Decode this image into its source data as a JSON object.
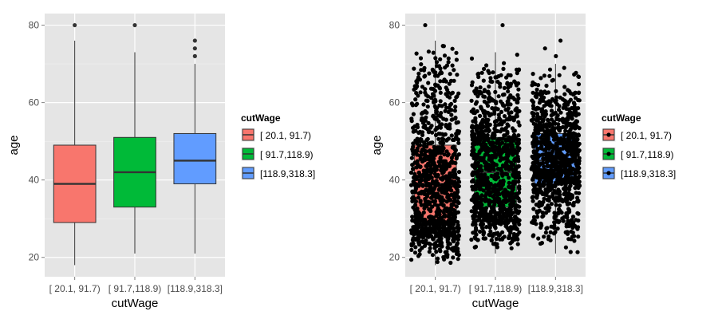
{
  "chart_data": [
    {
      "type": "box",
      "xlabel": "cutWage",
      "ylabel": "age",
      "categories": [
        "[ 20.1, 91.7)",
        "[ 91.7,118.9)",
        "[118.9,318.3]"
      ],
      "ylim": [
        15,
        83
      ],
      "yticks": [
        20,
        40,
        60,
        80
      ],
      "grid": true,
      "legend": {
        "title": "cutWage",
        "position": "right",
        "entries": [
          "[ 20.1, 91.7)",
          "[ 91.7,118.9)",
          "[118.9,318.3]"
        ]
      },
      "boxes": [
        {
          "category": "[ 20.1, 91.7)",
          "whisker_low": 18,
          "q1": 29,
          "median": 39,
          "q3": 49,
          "whisker_high": 76,
          "outliers": [
            80
          ]
        },
        {
          "category": "[ 91.7,118.9)",
          "whisker_low": 21,
          "q1": 33,
          "median": 42,
          "q3": 51,
          "whisker_high": 73,
          "outliers": [
            80
          ]
        },
        {
          "category": "[118.9,318.3]",
          "whisker_low": 21,
          "q1": 39,
          "median": 45,
          "q3": 52,
          "whisker_high": 70,
          "outliers": [
            72,
            74,
            76
          ]
        }
      ]
    },
    {
      "type": "box",
      "overlay": "jittered points",
      "xlabel": "cutWage",
      "ylabel": "age",
      "categories": [
        "[ 20.1, 91.7)",
        "[ 91.7,118.9)",
        "[118.9,318.3]"
      ],
      "ylim": [
        15,
        83
      ],
      "yticks": [
        20,
        40,
        60,
        80
      ],
      "grid": true,
      "legend": {
        "title": "cutWage",
        "position": "right",
        "entries": [
          "[ 20.1, 91.7)",
          "[ 91.7,118.9)",
          "[118.9,318.3]"
        ]
      },
      "boxes": [
        {
          "category": "[ 20.1, 91.7)",
          "whisker_low": 18,
          "q1": 29,
          "median": 39,
          "q3": 49,
          "whisker_high": 76,
          "outliers": [
            80
          ]
        },
        {
          "category": "[ 91.7,118.9)",
          "whisker_low": 21,
          "q1": 33,
          "median": 42,
          "q3": 51,
          "whisker_high": 73,
          "outliers": [
            80
          ]
        },
        {
          "category": "[118.9,318.3]",
          "whisker_low": 21,
          "q1": 39,
          "median": 45,
          "q3": 52,
          "whisker_high": 70,
          "outliers": [
            72,
            74,
            76
          ]
        }
      ],
      "points_per_group": [
        1000,
        1000,
        1000
      ]
    }
  ],
  "colors": {
    "panel": "#e5e5e5",
    "grid": "#ffffff",
    "series": [
      "#f8766d",
      "#00ba38",
      "#619cff"
    ],
    "box_line": "#333333",
    "point": "#000000"
  }
}
